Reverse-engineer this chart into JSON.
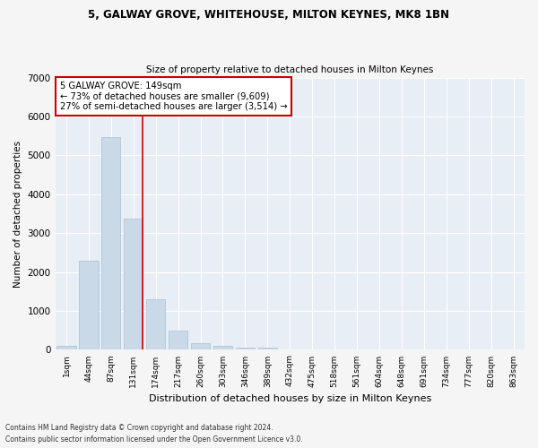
{
  "title1": "5, GALWAY GROVE, WHITEHOUSE, MILTON KEYNES, MK8 1BN",
  "title2": "Size of property relative to detached houses in Milton Keynes",
  "xlabel": "Distribution of detached houses by size in Milton Keynes",
  "ylabel": "Number of detached properties",
  "bar_labels": [
    "1sqm",
    "44sqm",
    "87sqm",
    "131sqm",
    "174sqm",
    "217sqm",
    "260sqm",
    "303sqm",
    "346sqm",
    "389sqm",
    "432sqm",
    "475sqm",
    "518sqm",
    "561sqm",
    "604sqm",
    "648sqm",
    "691sqm",
    "734sqm",
    "777sqm",
    "820sqm",
    "863sqm"
  ],
  "bar_values": [
    100,
    2280,
    5480,
    3380,
    1310,
    500,
    180,
    95,
    65,
    55,
    0,
    0,
    0,
    0,
    0,
    0,
    0,
    0,
    0,
    0,
    0
  ],
  "bar_color": "#c9d9e8",
  "bar_edgecolor": "#a8c0d6",
  "annotation_line1": "5 GALWAY GROVE: 149sqm",
  "annotation_line2": "← 73% of detached houses are smaller (9,609)",
  "annotation_line3": "27% of semi-detached houses are larger (3,514) →",
  "annotation_box_facecolor": "#ffffff",
  "annotation_box_edgecolor": "#cc0000",
  "vline_color": "#cc0000",
  "vline_x": 3.42,
  "ylim": [
    0,
    7000
  ],
  "yticks": [
    0,
    1000,
    2000,
    3000,
    4000,
    5000,
    6000,
    7000
  ],
  "ax_facecolor": "#e8eef5",
  "fig_facecolor": "#f5f5f5",
  "grid_color": "#ffffff",
  "footer1": "Contains HM Land Registry data © Crown copyright and database right 2024.",
  "footer2": "Contains public sector information licensed under the Open Government Licence v3.0."
}
